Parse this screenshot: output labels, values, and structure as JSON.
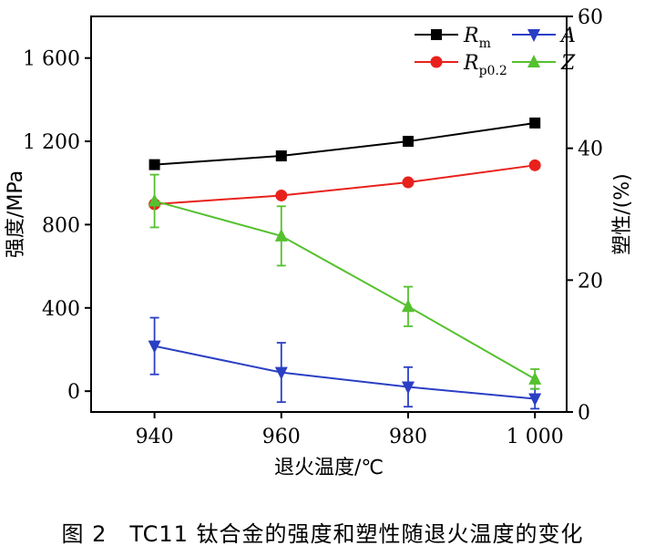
{
  "caption": "图 2　TC11 钛合金的强度和塑性随退火温度的变化",
  "chart_data": {
    "type": "line",
    "x": [
      940,
      960,
      980,
      1000
    ],
    "x_tick_labels": [
      "940",
      "960",
      "980",
      "1 000"
    ],
    "xlabel": "退火温度/℃",
    "xlim": [
      930,
      1005
    ],
    "ylabel_left": "强度/MPa",
    "ylim_left": [
      -100,
      1800
    ],
    "y_left_ticks": [
      0,
      400,
      800,
      1200,
      1600
    ],
    "y_left_tick_labels": [
      "0",
      "400",
      "800",
      "1 200",
      "1 600"
    ],
    "ylabel_right": "塑性/(%)",
    "ylim_right": [
      0,
      60
    ],
    "y_right_ticks": [
      0,
      20,
      40,
      60
    ],
    "y_right_tick_labels": [
      "0",
      "20",
      "40",
      "60"
    ],
    "grid": false,
    "legend_position": "top-right",
    "series": [
      {
        "name": "R_m",
        "label_main": "R",
        "label_sub": "m",
        "axis": "left",
        "marker": "square",
        "color": "#000000",
        "values": [
          1088,
          1130,
          1200,
          1288
        ]
      },
      {
        "name": "R_p0.2",
        "label_main": "R",
        "label_sub": "p0.2",
        "axis": "left",
        "marker": "circle",
        "color": "#e8211d",
        "values": [
          898,
          940,
          1003,
          1085
        ]
      },
      {
        "name": "A",
        "label_main": "A",
        "label_sub": "",
        "axis": "right",
        "marker": "triangle-down",
        "color": "#2b3fc4",
        "values": [
          10.0,
          6.0,
          3.8,
          2.0
        ],
        "error": [
          4.3,
          4.5,
          3.0,
          1.5
        ]
      },
      {
        "name": "Z",
        "label_main": "Z",
        "label_sub": "",
        "axis": "right",
        "marker": "triangle-up",
        "color": "#55c12e",
        "values": [
          32.0,
          26.7,
          16.0,
          5.0
        ],
        "error": [
          4.0,
          4.5,
          3.0,
          1.5
        ]
      }
    ]
  }
}
